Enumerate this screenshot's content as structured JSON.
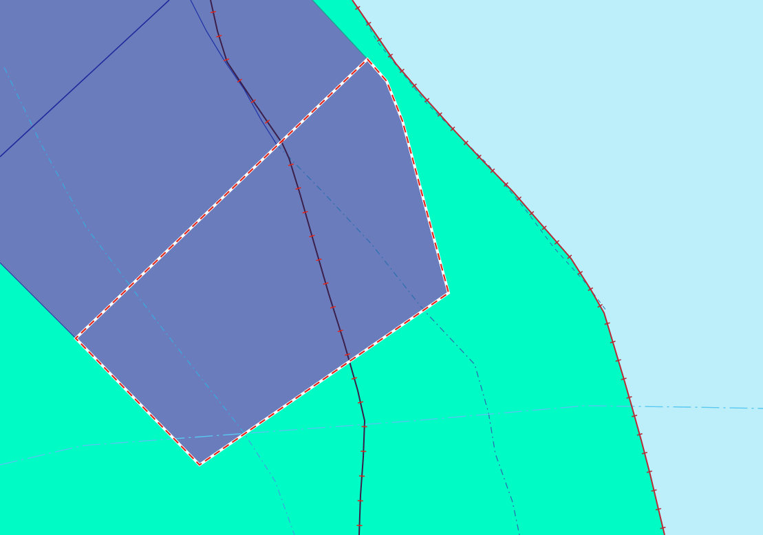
{
  "map": {
    "colors": {
      "water": "#bdeffb",
      "land": "#00fbc4",
      "zone_fill": "#6b7cbc",
      "zone_edge": "#2d3aa8",
      "selection_outline_primary": "#e0271c",
      "selection_outline_secondary": "#ffffff",
      "coastline": "#b82b36",
      "boundary_dark": "#3a1f4a",
      "boundary_light": "#39a9de",
      "boundary_light_alt": "#58c8f0",
      "boundary_mid": "#2e6fb0"
    },
    "layers": [
      "water-area",
      "land-area",
      "zone-polygon",
      "selected-polygon",
      "coastline-boundary",
      "dark-boundary-line",
      "light-dashed-boundaries",
      "horizontal-dash-dot-line"
    ]
  }
}
